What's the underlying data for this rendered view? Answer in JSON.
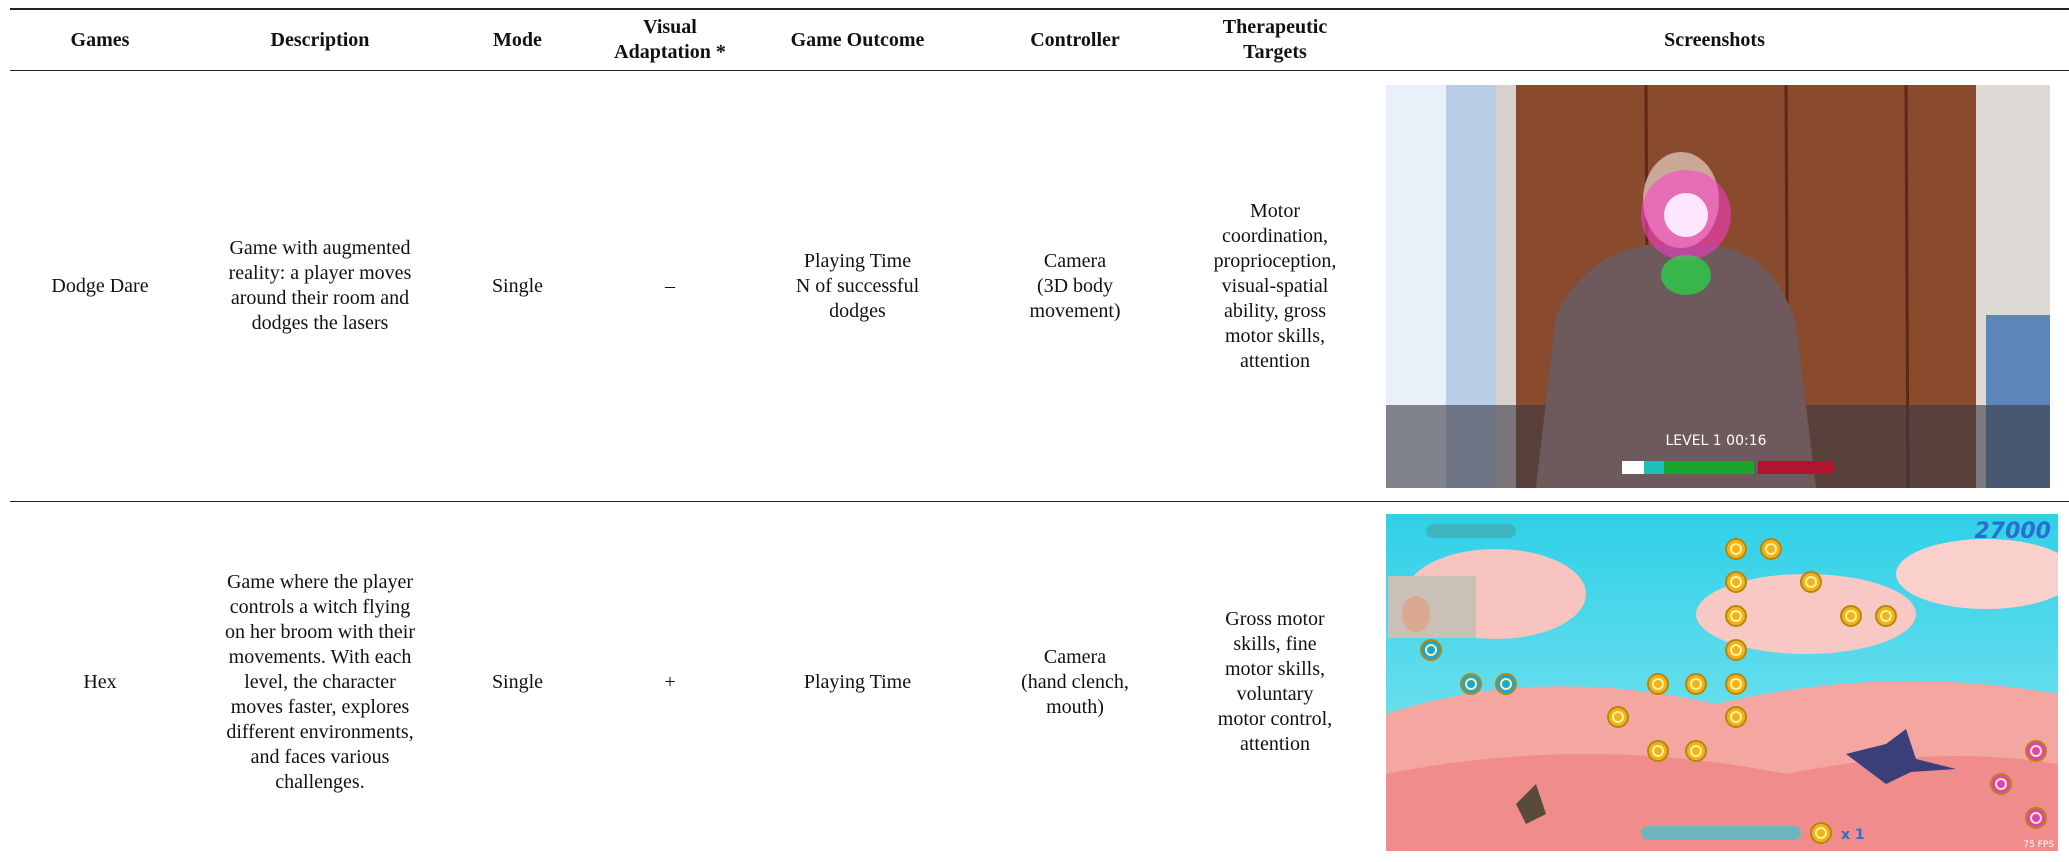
{
  "table": {
    "headers": [
      [
        "Games"
      ],
      [
        "Description"
      ],
      [
        "Mode"
      ],
      [
        "Visual",
        "Adaptation *"
      ],
      [
        "Game Outcome"
      ],
      [
        "Controller"
      ],
      [
        "Therapeutic",
        "Targets"
      ],
      [
        "Screenshots"
      ]
    ],
    "rows": [
      {
        "cells": [
          [
            "Dodge Dare"
          ],
          [
            "Game with augmented",
            "reality: a player moves",
            "around their room and",
            "dodges the lasers"
          ],
          [
            "Single"
          ],
          [
            "–"
          ],
          [
            "Playing Time",
            "N of successful",
            "dodges"
          ],
          [
            "Camera",
            "(3D body",
            "movement)"
          ],
          [
            "Motor",
            "coordination,",
            "proprioception,",
            "visual-spatial",
            "ability, gross",
            "motor skills,",
            "attention"
          ]
        ],
        "screenshot": {
          "texts": [
            "LEVEL 1 00:16"
          ]
        }
      },
      {
        "cells": [
          [
            "Hex"
          ],
          [
            "Game where the player",
            "controls a witch flying",
            "on her broom with their",
            "movements. With each",
            "level, the character",
            "moves faster, explores",
            "different environments,",
            "and faces various",
            "challenges."
          ],
          [
            "Single"
          ],
          [
            "+"
          ],
          [
            "Playing Time"
          ],
          [
            "Camera",
            "(hand clench,",
            "mouth)"
          ],
          [
            "Gross motor",
            "skills, fine",
            "motor skills,",
            "voluntary",
            "motor control,",
            "attention"
          ]
        ],
        "screenshot": {
          "texts": [
            "27000",
            "x 1",
            "75 FPS"
          ]
        }
      }
    ]
  }
}
